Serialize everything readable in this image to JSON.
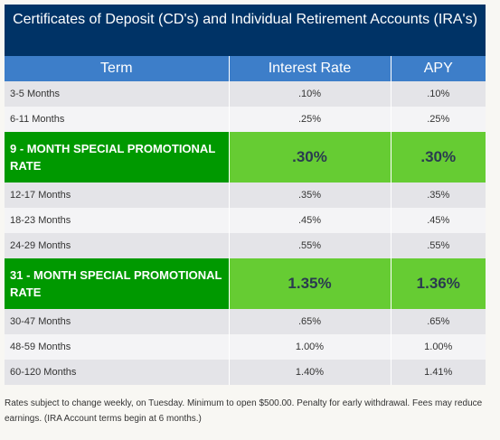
{
  "title": "Certificates of Deposit (CD's) and Individual Retirement Accounts (IRA's)",
  "headers": [
    "Term",
    "Interest Rate",
    "APY"
  ],
  "rows": [
    {
      "term": "3-5 Months",
      "rate": ".10%",
      "apy": ".10%"
    },
    {
      "term": "6-11 Months",
      "rate": ".25%",
      "apy": ".25%"
    },
    {
      "term": "9  - MONTH SPECIAL PROMOTIONAL RATE",
      "rate": ".30%",
      "apy": ".30%"
    },
    {
      "term": "12-17 Months",
      "rate": ".35%",
      "apy": ".35%"
    },
    {
      "term": "18-23 Months",
      "rate": ".45%",
      "apy": ".45%"
    },
    {
      "term": "24-29 Months",
      "rate": ".55%",
      "apy": ".55%"
    },
    {
      "term": "31 - MONTH SPECIAL PROMOTIONAL RATE",
      "rate": "1.35%",
      "apy": "1.36%"
    },
    {
      "term": "30-47 Months",
      "rate": ".65%",
      "apy": ".65%"
    },
    {
      "term": "48-59 Months",
      "rate": "1.00%",
      "apy": "1.00%"
    },
    {
      "term": "60-120 Months",
      "rate": "1.40%",
      "apy": "1.41%"
    }
  ],
  "footnote": "Rates subject to change weekly, on Tuesday. Minimum to open $500.00. Penalty for early withdrawal. Fees may reduce earnings. (IRA Account terms begin at 6 months.)",
  "colors": {
    "title_bg": "#003366",
    "header_bg": "#3d7ec9",
    "promo_term_bg": "#009900",
    "promo_rate_bg": "#66cc33"
  }
}
